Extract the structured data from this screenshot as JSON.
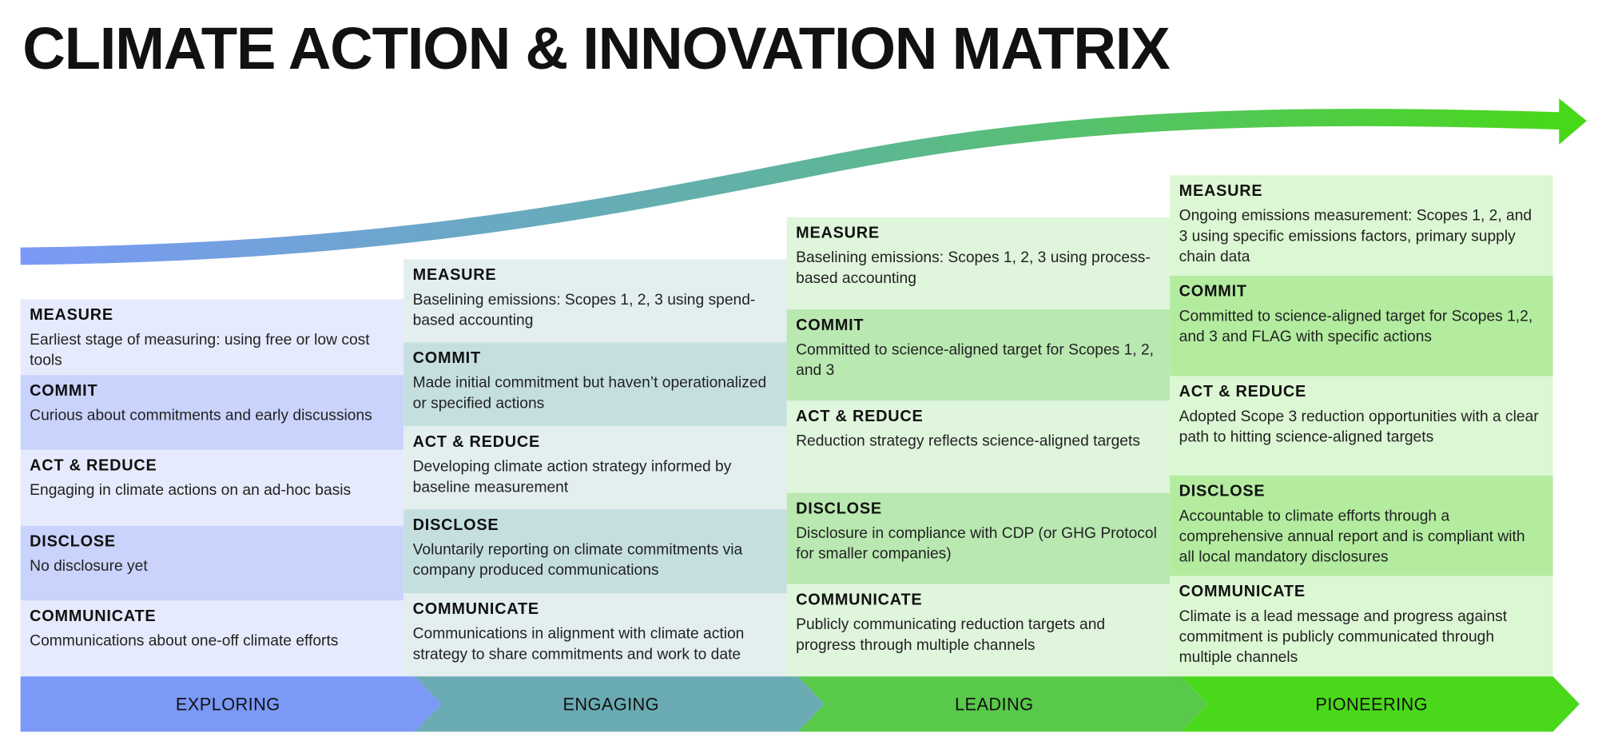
{
  "title": "CLIMATE ACTION & INNOVATION MATRIX",
  "stages": [
    {
      "name": "EXPLORING",
      "rows": [
        {
          "heading": "MEASURE",
          "text": "Earliest stage of measuring: using free or low cost tools"
        },
        {
          "heading": "COMMIT",
          "text": "Curious about commitments and early discussions"
        },
        {
          "heading": "ACT & REDUCE",
          "text": "Engaging in climate actions on an ad-hoc basis"
        },
        {
          "heading": "DISCLOSE",
          "text": "No disclosure yet"
        },
        {
          "heading": "COMMUNICATE",
          "text": "Communications about one-off climate efforts"
        }
      ]
    },
    {
      "name": "ENGAGING",
      "rows": [
        {
          "heading": "MEASURE",
          "text": "Baselining emissions: Scopes 1, 2, 3 using spend-based accounting"
        },
        {
          "heading": "COMMIT",
          "text": "Made initial commitment but haven’t operationalized or specified actions"
        },
        {
          "heading": "ACT & REDUCE",
          "text": "Developing climate action strategy informed by baseline measurement"
        },
        {
          "heading": "DISCLOSE",
          "text": "Voluntarily reporting on climate commitments via company produced communications"
        },
        {
          "heading": "COMMUNICATE",
          "text": "Communications in alignment with climate action strategy to share commitments and work to date"
        }
      ]
    },
    {
      "name": "LEADING",
      "rows": [
        {
          "heading": "MEASURE",
          "text": "Baselining emissions: Scopes 1, 2, 3 using process-based accounting"
        },
        {
          "heading": "COMMIT",
          "text": "Committed to science-aligned target for Scopes 1, 2, and 3"
        },
        {
          "heading": "ACT & REDUCE",
          "text": "Reduction strategy reflects science-aligned targets"
        },
        {
          "heading": "DISCLOSE",
          "text": "Disclosure in compliance with CDP (or GHG Protocol for smaller companies)"
        },
        {
          "heading": "COMMUNICATE",
          "text": "Publicly communicating reduction targets and progress through multiple channels"
        }
      ]
    },
    {
      "name": "PIONEERING",
      "rows": [
        {
          "heading": "MEASURE",
          "text": "Ongoing emissions measurement: Scopes 1, 2, and 3 using specific emissions factors, primary supply chain data"
        },
        {
          "heading": "COMMIT",
          "text": "Committed to science-aligned target for Scopes 1,2, and 3 and FLAG with specific actions"
        },
        {
          "heading": "ACT & REDUCE",
          "text": "Adopted Scope 3 reduction opportunities with a clear path to hitting science-aligned targets"
        },
        {
          "heading": "DISCLOSE",
          "text": "Accountable to climate efforts through a comprehensive annual report and is compliant with all local mandatory disclosures"
        },
        {
          "heading": "COMMUNICATE",
          "text": "Climate is a lead message and progress against commitment is publicly communicated through multiple channels"
        }
      ]
    }
  ]
}
